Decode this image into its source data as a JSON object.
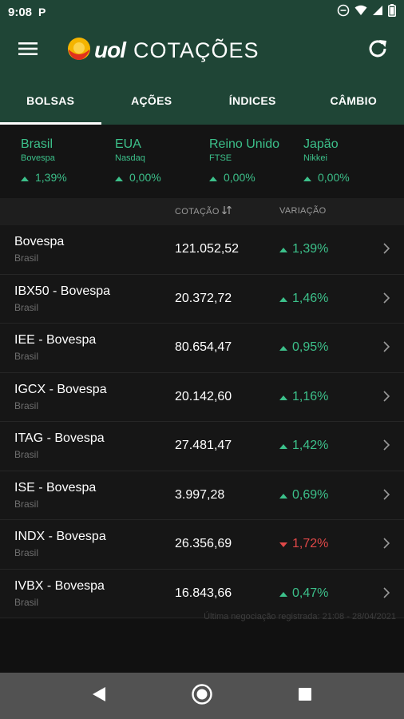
{
  "status_bar": {
    "time": "9:08",
    "notification_icon": "P"
  },
  "app_bar": {
    "brand": "uol",
    "title": "COTAÇÕES"
  },
  "tabs": [
    {
      "label": "BOLSAS",
      "active": true
    },
    {
      "label": "AÇÕES",
      "active": false
    },
    {
      "label": "ÍNDICES",
      "active": false
    },
    {
      "label": "CÂMBIO",
      "active": false
    }
  ],
  "summary": [
    {
      "name": "Brasil",
      "index": "Bovespa",
      "change": "1,39%"
    },
    {
      "name": "EUA",
      "index": "Nasdaq",
      "change": "0,00%"
    },
    {
      "name": "Reino Unido",
      "index": "FTSE",
      "change": "0,00%"
    },
    {
      "name": "Japão",
      "index": "Nikkei",
      "change": "0,00%"
    }
  ],
  "table": {
    "col_quote": "COTAÇÃO",
    "col_change": "VARIAÇÃO",
    "rows": [
      {
        "name": "Bovespa",
        "country": "Brasil",
        "quote": "121.052,52",
        "change": "1,39%",
        "direction": "up"
      },
      {
        "name": "IBX50 - Bovespa",
        "country": "Brasil",
        "quote": "20.372,72",
        "change": "1,46%",
        "direction": "up"
      },
      {
        "name": "IEE - Bovespa",
        "country": "Brasil",
        "quote": "80.654,47",
        "change": "0,95%",
        "direction": "up"
      },
      {
        "name": "IGCX - Bovespa",
        "country": "Brasil",
        "quote": "20.142,60",
        "change": "1,16%",
        "direction": "up"
      },
      {
        "name": "ITAG - Bovespa",
        "country": "Brasil",
        "quote": "27.481,47",
        "change": "1,42%",
        "direction": "up"
      },
      {
        "name": "ISE - Bovespa",
        "country": "Brasil",
        "quote": "3.997,28",
        "change": "0,69%",
        "direction": "up"
      },
      {
        "name": "INDX - Bovespa",
        "country": "Brasil",
        "quote": "26.356,69",
        "change": "1,72%",
        "direction": "down"
      },
      {
        "name": "IVBX - Bovespa",
        "country": "Brasil",
        "quote": "16.843,66",
        "change": "0,47%",
        "direction": "up"
      }
    ]
  },
  "footnote": "Última negociação registrada: 21:08 - 28/04/2021",
  "colors": {
    "header_bg": "#1f4536",
    "positive": "#3cc08a",
    "negative": "#e04848"
  }
}
